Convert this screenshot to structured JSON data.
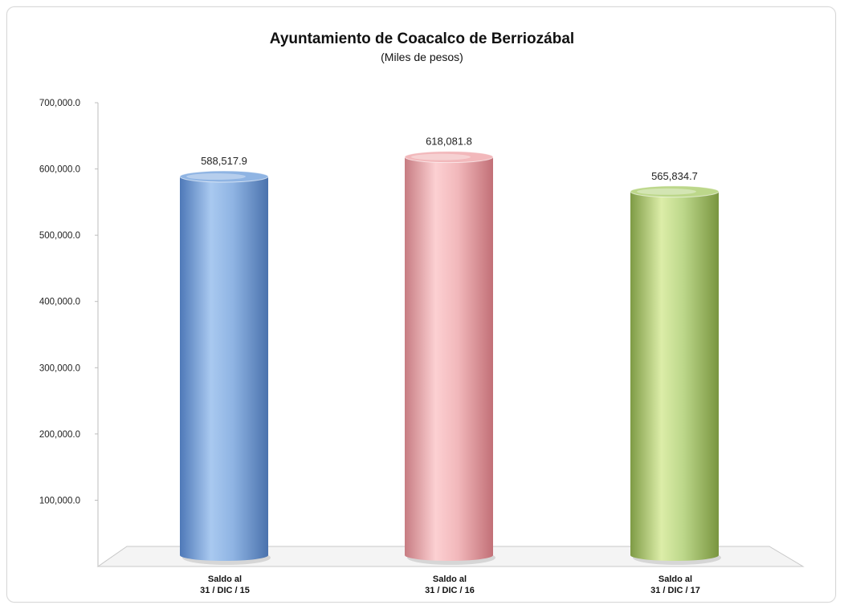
{
  "chart_data": {
    "type": "bar",
    "title": "Ayuntamiento de Coacalco de Berriozábal",
    "subtitle": "(Miles de pesos)",
    "categories": [
      [
        "Saldo al",
        "31 / DIC / 15"
      ],
      [
        "Saldo al",
        "31 / DIC / 16"
      ],
      [
        "Saldo al",
        "31 / DIC / 17"
      ]
    ],
    "values": [
      588517.9,
      618081.8,
      565834.7
    ],
    "value_labels": [
      "588,517.9",
      "618,081.8",
      "565,834.7"
    ],
    "y_ticks": [
      100000,
      200000,
      300000,
      400000,
      500000,
      600000,
      700000
    ],
    "y_tick_labels": [
      "100,000.0",
      "200,000.0",
      "300,000.0",
      "400,000.0",
      "500,000.0",
      "600,000.0",
      "700,000.0"
    ],
    "ylim": [
      0,
      700000
    ],
    "grid": false,
    "legend": "none",
    "bar_style": "3d-cylinder",
    "colors": [
      "#8fb4e3",
      "#f2b8bb",
      "#bcd78a"
    ],
    "xlabel": "",
    "ylabel": ""
  }
}
